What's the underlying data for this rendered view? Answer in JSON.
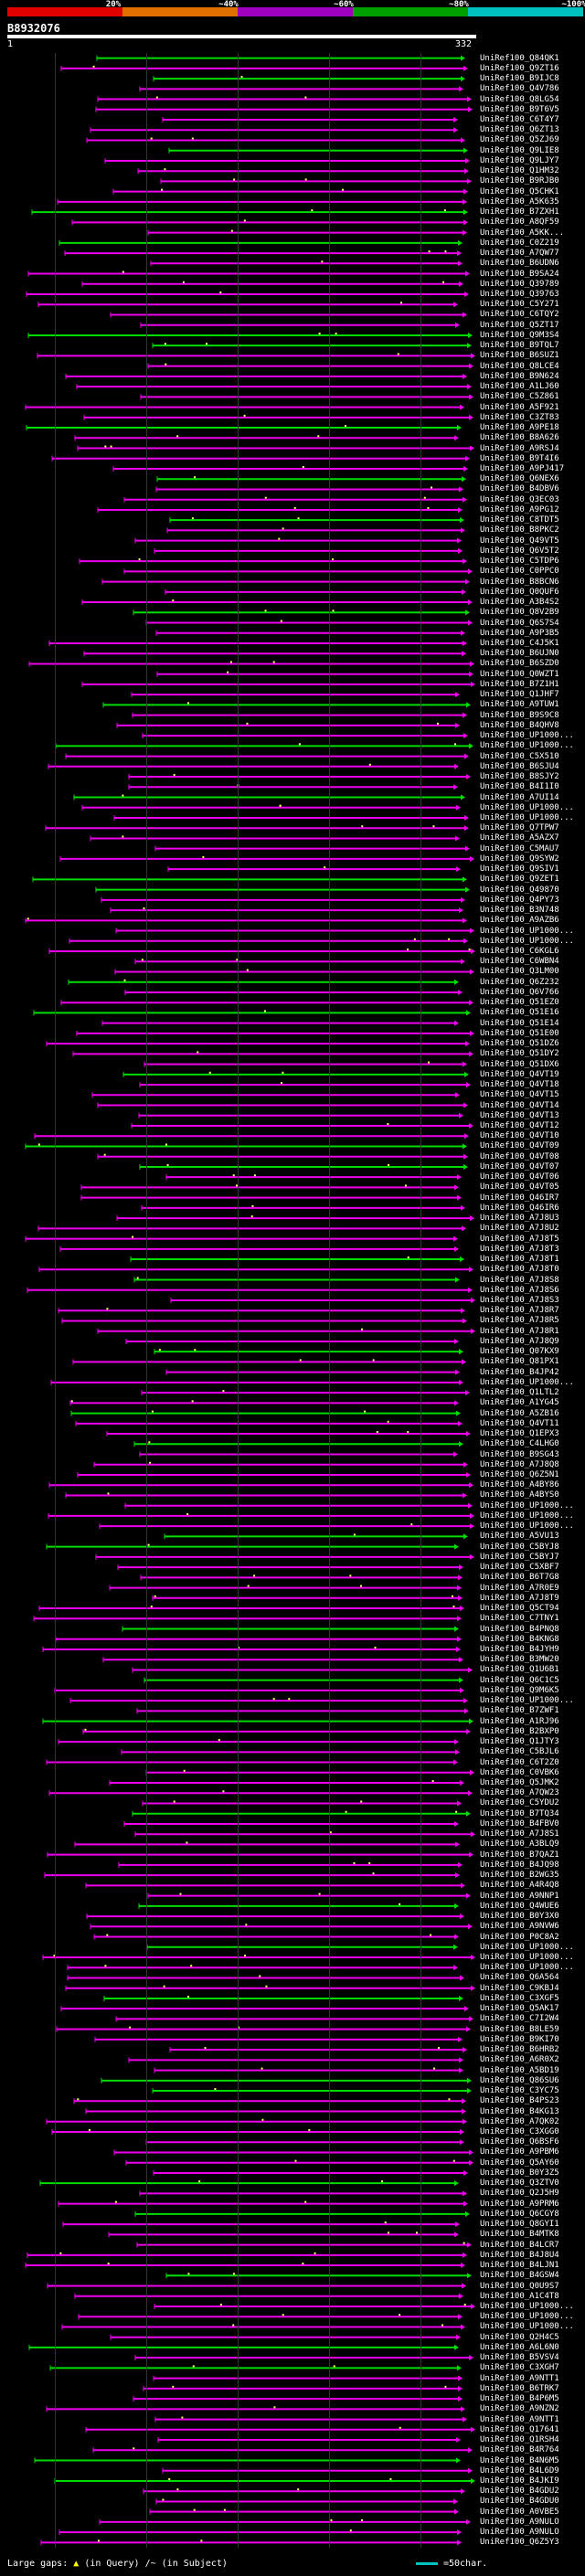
{
  "header": {
    "scale_labels": [
      "20%",
      "~40%",
      "~60%",
      "~80%",
      "~100%"
    ],
    "scale_colors": [
      "#e00000",
      "#e07000",
      "#a000c0",
      "#00a000",
      "#00c0c0"
    ],
    "query_name": "B8932076",
    "start_label": "1",
    "end_label": "332"
  },
  "hits": [
    "UniRef100_Q84QK1",
    "UniRef100_Q9ZT16",
    "UniRef100_B9IJC8",
    "UniRef100_Q4V786",
    "UniRef100_Q8LG54",
    "UniRef100_B9T6V5",
    "UniRef100_C6T4Y7",
    "UniRef100_Q6ZT13",
    "UniRef100_Q5ZJ69",
    "UniRef100_Q9LIE8",
    "UniRef100_Q9LJY7",
    "UniRef100_Q1HM32",
    "UniRef100_B9RJB0",
    "UniRef100_Q5CHK1",
    "UniRef100_A5K635",
    "UniRef100_B7ZXH1",
    "UniRef100_A8QF59",
    "UniRef100_A5KK...",
    "UniRef100_C0Z219",
    "UniRef100_A7QW77",
    "UniRef100_B6UDN6",
    "UniRef100_B9SA24",
    "UniRef100_Q39789",
    "UniRef100_Q39763",
    "UniRef100_C5Y271",
    "UniRef100_C6TQY2",
    "UniRef100_Q5ZT17",
    "UniRef100_Q9M3S4",
    "UniRef100_B9TQL7",
    "UniRef100_B6SUZ1",
    "UniRef100_Q8LCE4",
    "UniRef100_B9N624",
    "UniRef100_A1LJ60",
    "UniRef100_C5Z861",
    "UniRef100_A5F921",
    "UniRef100_C3ZT83",
    "UniRef100_A9PE18",
    "UniRef100_B8A626",
    "UniRef100_A9RSJ4",
    "UniRef100_B9T4I6",
    "UniRef100_A9PJ417",
    "UniRef100_Q6NEX6",
    "UniRef100_B4DBV6",
    "UniRef100_Q3EC03",
    "UniRef100_A9PG12",
    "UniRef100_C8TDT5",
    "UniRef100_B8PKC2",
    "UniRef100_Q49VT5",
    "UniRef100_Q6V5T2",
    "UniRef100_C5TDP6",
    "UniRef100_C0PPC0",
    "UniRef100_B8BCN6",
    "UniRef100_Q0QUF6",
    "UniRef100_A3B4S2",
    "UniRef100_Q8V2B9",
    "UniRef100_Q6S7S4",
    "UniRef100_A9P3B5",
    "UniRef100_C4J5K1",
    "UniRef100_B6UJN0",
    "UniRef100_B6SZD0",
    "UniRef100_Q0WZT1",
    "UniRef100_B7Z1H1",
    "UniRef100_Q1JHF7",
    "UniRef100_A9TUW1",
    "UniRef100_B9S9C8",
    "UniRef100_B4QHV8",
    "UniRef100_UP1000...",
    "UniRef100_UP1000...",
    "UniRef100_C5X510",
    "UniRef100_B6SJU4",
    "UniRef100_B8SJY2",
    "UniRef100_B4I1I0",
    "UniRef100_A7UI14",
    "UniRef100_UP1000...",
    "UniRef100_UP1000...",
    "UniRef100_Q7TPW7",
    "UniRef100_A5AZX7",
    "UniRef100_C5MAU7",
    "UniRef100_Q9SYW2",
    "UniRef100_Q9SIV1",
    "UniRef100_Q9ZET1",
    "UniRef100_Q49870",
    "UniRef100_Q4PY73",
    "UniRef100_B3N748",
    "UniRef100_A9AZB6",
    "UniRef100_UP1000...",
    "UniRef100_UP1000...",
    "UniRef100_C6KGL6",
    "UniRef100_C6WBN4",
    "UniRef100_Q3LM00",
    "UniRef100_Q6Z232",
    "UniRef100_Q6V766",
    "UniRef100_Q51EZ0",
    "UniRef100_Q51E16",
    "UniRef100_Q51E14",
    "UniRef100_Q51E00",
    "UniRef100_Q51DZ6",
    "UniRef100_Q51DY2",
    "UniRef100_Q51DX6",
    "UniRef100_Q4VT19",
    "UniRef100_Q4VT18",
    "UniRef100_Q4VT15",
    "UniRef100_Q4VT14",
    "UniRef100_Q4VT13",
    "UniRef100_Q4VT12",
    "UniRef100_Q4VT10",
    "UniRef100_Q4VT09",
    "UniRef100_Q4VT08",
    "UniRef100_Q4VT07",
    "UniRef100_Q4VT06",
    "UniRef100_Q4VT05",
    "UniRef100_Q46IR7",
    "UniRef100_Q46IR6",
    "UniRef100_A7J8U3",
    "UniRef100_A7J8U2",
    "UniRef100_A7J8T5",
    "UniRef100_A7J8T3",
    "UniRef100_A7J8T1",
    "UniRef100_A7J8T0",
    "UniRef100_A7J8S8",
    "UniRef100_A7J8S6",
    "UniRef100_A7J8S3",
    "UniRef100_A7J8R7",
    "UniRef100_A7J8R5",
    "UniRef100_A7J8R1",
    "UniRef100_A7J8Q9",
    "UniRef100_Q07KX9",
    "UniRef100_Q81PX1",
    "UniRef100_B4JP42",
    "UniRef100_UP1000...",
    "UniRef100_Q1LTL2",
    "UniRef100_A1YG45",
    "UniRef100_A5ZB16",
    "UniRef100_Q4VT11",
    "UniRef100_Q1EPX3",
    "UniRef100_C4LHG0",
    "UniRef100_B9SG43",
    "UniRef100_A7J8Q8",
    "UniRef100_Q6Z5N1",
    "UniRef100_A4BY86",
    "UniRef100_A4BYS0",
    "UniRef100_UP1000...",
    "UniRef100_UP1000...",
    "UniRef100_UP1000...",
    "UniRef100_A5VU13",
    "UniRef100_C5BYJ8",
    "UniRef100_C5BYJ7",
    "UniRef100_C5XBF7",
    "UniRef100_B6T7G8",
    "UniRef100_A7R0E9",
    "UniRef100_A7J8T9",
    "UniRef100_Q5CT94",
    "UniRef100_C7TNY1",
    "UniRef100_B4PNQ8",
    "UniRef100_B4KNG8",
    "UniRef100_B4JYH9",
    "UniRef100_B3MW20",
    "UniRef100_Q1U6B1",
    "UniRef100_Q6C1C5",
    "UniRef100_Q9M6K5",
    "UniRef100_UP1000...",
    "UniRef100_B7ZWF1",
    "UniRef100_A1RJ96",
    "UniRef100_B2BXP0",
    "UniRef100_Q1JTY3",
    "UniRef100_C5BJL6",
    "UniRef100_C6T2Z0",
    "UniRef100_C0VBK6",
    "UniRef100_Q5JMK2",
    "UniRef100_A7QW23",
    "UniRef100_C5YDU2",
    "UniRef100_B7TQ34",
    "UniRef100_B4FBV0",
    "UniRef100_A7J8S1",
    "UniRef100_A3BLQ9",
    "UniRef100_B7QAZ1",
    "UniRef100_B4JQ98",
    "UniRef100_B2WG35",
    "UniRef100_A4R4Q8",
    "UniRef100_A9NNP1",
    "UniRef100_Q4WUE6",
    "UniRef100_B0Y3X0",
    "UniRef100_A9NVW6",
    "UniRef100_P0C8A2",
    "UniRef100_UP1000...",
    "UniRef100_UP1000...",
    "UniRef100_UP1000...",
    "UniRef100_Q6A564",
    "UniRef100_C9KBJ4",
    "UniRef100_C3XGF5",
    "UniRef100_Q5AK17",
    "UniRef100_C7I2W4",
    "UniRef100_B8LE59",
    "UniRef100_B9KI70",
    "UniRef100_B6HRB2",
    "UniRef100_A6R0X2",
    "UniRef100_A5BD19",
    "UniRef100_Q86SU6",
    "UniRef100_C3YC75",
    "UniRef100_B4PS23",
    "UniRef100_B4KG13",
    "UniRef100_A7QK02",
    "UniRef100_C3XGG0",
    "UniRef100_Q6BSF6",
    "UniRef100_A9PBM6",
    "UniRef100_Q5AY60",
    "UniRef100_B0Y3Z5",
    "UniRef100_Q3ZTV0",
    "UniRef100_Q2J5H9",
    "UniRef100_A9PRM6",
    "UniRef100_Q6CGY8",
    "UniRef100_Q8GYI1",
    "UniRef100_B4MTK8",
    "UniRef100_B4LCR7",
    "UniRef100_B4J8U4",
    "UniRef100_B4LJN1",
    "UniRef100_B4GSW4",
    "UniRef100_Q0U9S7",
    "UniRef100_A1C4T8",
    "UniRef100_UP1000...",
    "UniRef100_UP1000...",
    "UniRef100_UP1000...",
    "UniRef100_Q2H4C5",
    "UniRef100_A6L6N0",
    "UniRef100_B5VSV4",
    "UniRef100_C3XGH7",
    "UniRef100_A9NTT1",
    "UniRef100_B6TRK7",
    "UniRef100_B4P6M5",
    "UniRef100_A9NZN2",
    "UniRef100_A9NTT1",
    "UniRef100_Q17641",
    "UniRef100_Q1RSH4",
    "UniRef100_B4R764",
    "UniRef100_B4N6M5",
    "UniRef100_B4L6D9",
    "UniRef100_B4JKI9",
    "UniRef100_B4GDU2",
    "UniRef100_B4GDU0",
    "UniRef100_A0VBE5",
    "UniRef100_A9NULO",
    "UniRef100_A9NULO",
    "UniRef100_Q6Z5Y3"
  ],
  "legend": {
    "prefix": "Large gaps:",
    "query_gap": "(in Query)",
    "subject_gap": "(in Subject)",
    "scale_note": "=50char."
  }
}
